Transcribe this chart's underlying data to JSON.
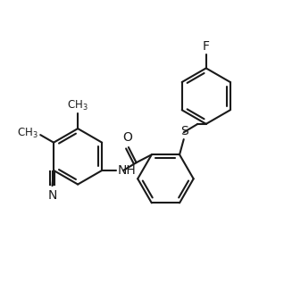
{
  "bg_color": "#ffffff",
  "line_color": "#1a1a1a",
  "line_width": 1.5,
  "font_size": 10,
  "fig_width": 3.18,
  "fig_height": 3.35,
  "dpi": 100,
  "xlim": [
    -0.5,
    9.5
  ],
  "ylim": [
    -3.0,
    6.5
  ]
}
